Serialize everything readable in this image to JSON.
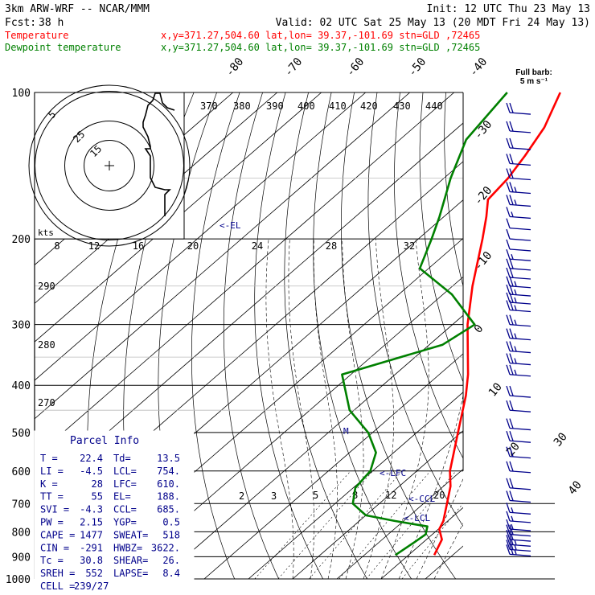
{
  "header": {
    "model": "3km ARW-WRF -- NCAR/MMM",
    "init": "Init: 12 UTC Thu 23 May 13",
    "fcst_label": "Fcst:",
    "fcst_hours": "38 h",
    "valid": "Valid: 02 UTC Sat 25 May 13 (20 MDT Fri 24 May 13)"
  },
  "legend": {
    "temperature": {
      "label": "Temperature",
      "info": "x,y=371.27,504.60   lat,lon= 39.37,-101.69   stn=GLD ,72465",
      "color": "#ff0000"
    },
    "dewpoint": {
      "label": "Dewpoint temperature",
      "info": "x,y=371.27,504.60   lat,lon= 39.37,-101.69   stn=GLD ,72465",
      "color": "#008000"
    }
  },
  "barb_key": {
    "title": "Full barb:",
    "value": "5 m s⁻¹"
  },
  "hodograph": {
    "units": "kts",
    "rings": [
      "5",
      "25",
      "15"
    ]
  },
  "parcel_info": {
    "title": "Parcel Info",
    "rows": [
      {
        "l1": "T",
        "v1": "22.4",
        "l2": "Td",
        "v2": "13.5"
      },
      {
        "l1": "LI",
        "v1": "-4.5",
        "l2": "LCL",
        "v2": "754."
      },
      {
        "l1": "K",
        "v1": "28",
        "l2": "LFC",
        "v2": "610."
      },
      {
        "l1": "TT",
        "v1": "55",
        "l2": "EL",
        "v2": "188."
      },
      {
        "l1": "SVI",
        "v1": "-4.3",
        "l2": "CCL",
        "v2": "685."
      },
      {
        "l1": "PW",
        "v1": "2.15",
        "l2": "YGP",
        "v2": "0.5"
      },
      {
        "l1": "CAPE",
        "v1": "1477",
        "l2": "SWEAT",
        "v2": "518"
      },
      {
        "l1": "CIN",
        "v1": "-291",
        "l2": "HWBZ",
        "v2": "3622."
      },
      {
        "l1": "Tc",
        "v1": "30.8",
        "l2": "SHEAR",
        "v2": "26."
      },
      {
        "l1": "SREH",
        "v1": "552",
        "l2": "LAPSE",
        "v2": "8.4"
      },
      {
        "l1": "CELL",
        "v1": "239/27",
        "l2": "",
        "v2": ""
      }
    ]
  },
  "level_markers": {
    "el": "<-EL",
    "lfc": "<-LFC",
    "ccl": "<-CCL",
    "lcl": "<-LCL",
    "mixing_top": "M"
  },
  "chart_data": {
    "type": "line",
    "y_scale": "log-pressure (hPa)",
    "y_ticks": [
      100,
      200,
      300,
      400,
      500,
      600,
      700,
      800,
      900,
      1000
    ],
    "isotherm_labels": [
      "-80",
      "-70",
      "-60",
      "-50",
      "-40",
      "-30",
      "-20",
      "-10",
      "0",
      "10",
      "20",
      "30",
      "40"
    ],
    "theta_labels": [
      "370",
      "380",
      "390",
      "400",
      "410",
      "420",
      "430",
      "440"
    ],
    "theta_labels_left": [
      "290",
      "280",
      "270"
    ],
    "mixing_ratio_labels": [
      "2",
      "3",
      "5",
      "8",
      "12",
      "20"
    ],
    "hodo_speed_labels": [
      "8",
      "12",
      "16",
      "20",
      "24",
      "28",
      "32"
    ],
    "series": [
      {
        "name": "Temperature",
        "color": "#ff0000",
        "points": [
          [
            893,
            25.8
          ],
          [
            830,
            23.5
          ],
          [
            790,
            20.2
          ],
          [
            760,
            19.0
          ],
          [
            700,
            15.3
          ],
          [
            645,
            11.6
          ],
          [
            600,
            7.5
          ],
          [
            555,
            4.0
          ],
          [
            500,
            -0.7
          ],
          [
            420,
            -8.5
          ],
          [
            380,
            -13.5
          ],
          [
            300,
            -26.6
          ],
          [
            250,
            -35.5
          ],
          [
            200,
            -45.5
          ],
          [
            180,
            -50.4
          ],
          [
            166,
            -54.5
          ],
          [
            150,
            -55.5
          ],
          [
            135,
            -57.5
          ],
          [
            118,
            -60.5
          ],
          [
            100,
            -66.0
          ]
        ]
      },
      {
        "name": "Dewpoint temperature",
        "color": "#008000",
        "points": [
          [
            893,
            17.0
          ],
          [
            840,
            18.0
          ],
          [
            810,
            18.5
          ],
          [
            780,
            16.8
          ],
          [
            760,
            8.0
          ],
          [
            740,
            0.0
          ],
          [
            700,
            -6.0
          ],
          [
            650,
            -9.5
          ],
          [
            600,
            -10.5
          ],
          [
            550,
            -14.0
          ],
          [
            500,
            -21.0
          ],
          [
            450,
            -31.0
          ],
          [
            380,
            -42.0
          ],
          [
            330,
            -27.0
          ],
          [
            300,
            -25.0
          ],
          [
            260,
            -38.0
          ],
          [
            230,
            -52.0
          ],
          [
            200,
            -57.0
          ],
          [
            180,
            -61.0
          ],
          [
            150,
            -68.5
          ],
          [
            125,
            -75.0
          ],
          [
            100,
            -78.0
          ]
        ]
      }
    ],
    "hodograph_uv_kts": [
      [
        27,
        23
      ],
      [
        24,
        24
      ],
      [
        22,
        26
      ],
      [
        21,
        30
      ],
      [
        19,
        30
      ],
      [
        18,
        27
      ],
      [
        16,
        25
      ],
      [
        15,
        21
      ],
      [
        14,
        18
      ],
      [
        14,
        16
      ],
      [
        16,
        12
      ],
      [
        17,
        8
      ],
      [
        17,
        7
      ],
      [
        15,
        7
      ],
      [
        17,
        4
      ],
      [
        17,
        2
      ],
      [
        17,
        -5
      ],
      [
        19,
        -9
      ],
      [
        23,
        -10
      ],
      [
        25,
        -10
      ],
      [
        23,
        -12
      ],
      [
        23,
        -21
      ]
    ],
    "wind_barbs": [
      {
        "p": 110,
        "kt": 20
      },
      {
        "p": 120,
        "kt": 20
      },
      {
        "p": 130,
        "kt": 20
      },
      {
        "p": 140,
        "kt": 20
      },
      {
        "p": 150,
        "kt": 20
      },
      {
        "p": 160,
        "kt": 25
      },
      {
        "p": 170,
        "kt": 25
      },
      {
        "p": 180,
        "kt": 15
      },
      {
        "p": 190,
        "kt": 10
      },
      {
        "p": 200,
        "kt": 10
      },
      {
        "p": 210,
        "kt": 10
      },
      {
        "p": 220,
        "kt": 15
      },
      {
        "p": 230,
        "kt": 20
      },
      {
        "p": 240,
        "kt": 20
      },
      {
        "p": 250,
        "kt": 25
      },
      {
        "p": 260,
        "kt": 25
      },
      {
        "p": 270,
        "kt": 25
      },
      {
        "p": 280,
        "kt": 25
      },
      {
        "p": 300,
        "kt": 25
      },
      {
        "p": 320,
        "kt": 25
      },
      {
        "p": 340,
        "kt": 25
      },
      {
        "p": 360,
        "kt": 25
      },
      {
        "p": 380,
        "kt": 25
      },
      {
        "p": 420,
        "kt": 20
      },
      {
        "p": 450,
        "kt": 20
      },
      {
        "p": 490,
        "kt": 20
      },
      {
        "p": 520,
        "kt": 20
      },
      {
        "p": 560,
        "kt": 20
      },
      {
        "p": 600,
        "kt": 20
      },
      {
        "p": 650,
        "kt": 20
      },
      {
        "p": 690,
        "kt": 20
      },
      {
        "p": 730,
        "kt": 15
      },
      {
        "p": 760,
        "kt": 15
      },
      {
        "p": 790,
        "kt": 15
      },
      {
        "p": 810,
        "kt": 20
      },
      {
        "p": 830,
        "kt": 20
      },
      {
        "p": 850,
        "kt": 25
      },
      {
        "p": 870,
        "kt": 25
      },
      {
        "p": 890,
        "kt": 25
      }
    ]
  }
}
